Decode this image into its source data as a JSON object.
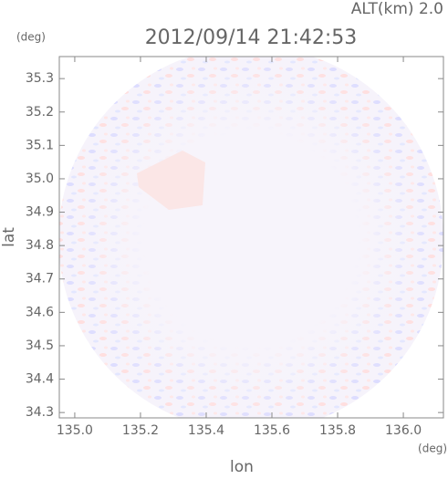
{
  "chart_data": {
    "type": "radar-image",
    "title": "2012/09/14 21:42:53",
    "altitude_label": "ALT(km) 2.0",
    "y_unit": "(deg)",
    "x_unit": "(deg)",
    "xlabel": "lon",
    "ylabel": "lat",
    "xlim": [
      134.953,
      136.122
    ],
    "ylim": [
      34.284,
      35.366
    ],
    "xticks": [
      {
        "value": 135.0,
        "label": "135.0"
      },
      {
        "value": 135.2,
        "label": "135.2"
      },
      {
        "value": 135.4,
        "label": "135.4"
      },
      {
        "value": 135.6,
        "label": "135.6"
      },
      {
        "value": 135.8,
        "label": "135.8"
      },
      {
        "value": 136.0,
        "label": "136.0"
      }
    ],
    "yticks": [
      {
        "value": 34.3,
        "label": "34.3"
      },
      {
        "value": 34.4,
        "label": "34.4"
      },
      {
        "value": 34.5,
        "label": "34.5"
      },
      {
        "value": 34.6,
        "label": "34.6"
      },
      {
        "value": 34.7,
        "label": "34.7"
      },
      {
        "value": 34.8,
        "label": "34.8"
      },
      {
        "value": 34.9,
        "label": "34.9"
      },
      {
        "value": 35.0,
        "label": "35.0"
      },
      {
        "value": 35.1,
        "label": "35.1"
      },
      {
        "value": 35.2,
        "label": "35.2"
      },
      {
        "value": 35.3,
        "label": "35.3"
      }
    ]
  }
}
